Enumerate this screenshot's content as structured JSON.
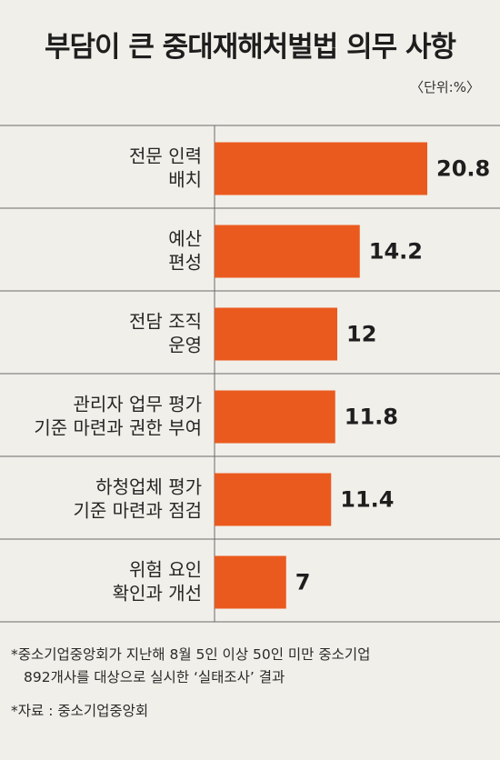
{
  "chart_data": {
    "type": "bar",
    "orientation": "horizontal",
    "title": "부담이 큰 중대재해처벌법 의무 사항",
    "unit_label": "〈단위:%〉",
    "categories": [
      [
        "전문 인력",
        "배치"
      ],
      [
        "예산",
        "편성"
      ],
      [
        "전담 조직",
        "운영"
      ],
      [
        "관리자 업무 평가",
        "기준 마련과 권한 부여"
      ],
      [
        "하청업체 평가",
        "기준 마련과 점검"
      ],
      [
        "위험 요인",
        "확인과 개선"
      ]
    ],
    "values": [
      20.8,
      14.2,
      12,
      11.8,
      11.4,
      7
    ],
    "value_labels": [
      "20.8",
      "14.2",
      "12",
      "11.8",
      "11.4",
      "7"
    ],
    "bar_color": "#ea5a1e",
    "grid": false,
    "legend": "none"
  },
  "notes": {
    "line1": "*중소기업중앙회가 지난해 8월 5인 이상 50인 미만 중소기업",
    "line2": "892개사를 대상으로 실시한 ‘실태조사’ 결과",
    "source": "*자료 : 중소기업중앙회"
  }
}
